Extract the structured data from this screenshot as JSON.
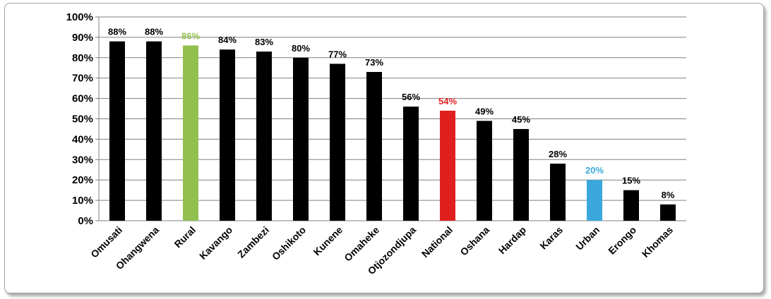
{
  "chart_data": {
    "type": "bar",
    "title": "",
    "xlabel": "",
    "ylabel": "",
    "ylim": [
      0,
      100
    ],
    "y_ticks": [
      "0%",
      "10%",
      "20%",
      "30%",
      "40%",
      "50%",
      "60%",
      "70%",
      "80%",
      "90%",
      "100%"
    ],
    "grid": true,
    "legend": "none",
    "categories": [
      "Omusati",
      "Ohangwena",
      "Rural",
      "Kavango",
      "Zambezi",
      "Oshikoto",
      "Kunene",
      "Omaheke",
      "Otjozondjupa",
      "National",
      "Oshana",
      "Hardap",
      "Karas",
      "Urban",
      "Erongo",
      "Khomas"
    ],
    "values": [
      88,
      88,
      86,
      84,
      83,
      80,
      77,
      73,
      56,
      54,
      49,
      45,
      28,
      20,
      15,
      8
    ],
    "value_labels": [
      "88%",
      "88%",
      "86%",
      "84%",
      "83%",
      "80%",
      "77%",
      "73%",
      "56%",
      "54%",
      "49%",
      "45%",
      "28%",
      "20%",
      "15%",
      "8%"
    ],
    "bar_colors": [
      "#000000",
      "#000000",
      "#92c050",
      "#000000",
      "#000000",
      "#000000",
      "#000000",
      "#000000",
      "#000000",
      "#e0201e",
      "#000000",
      "#000000",
      "#000000",
      "#3aa8dc",
      "#000000",
      "#000000"
    ]
  }
}
